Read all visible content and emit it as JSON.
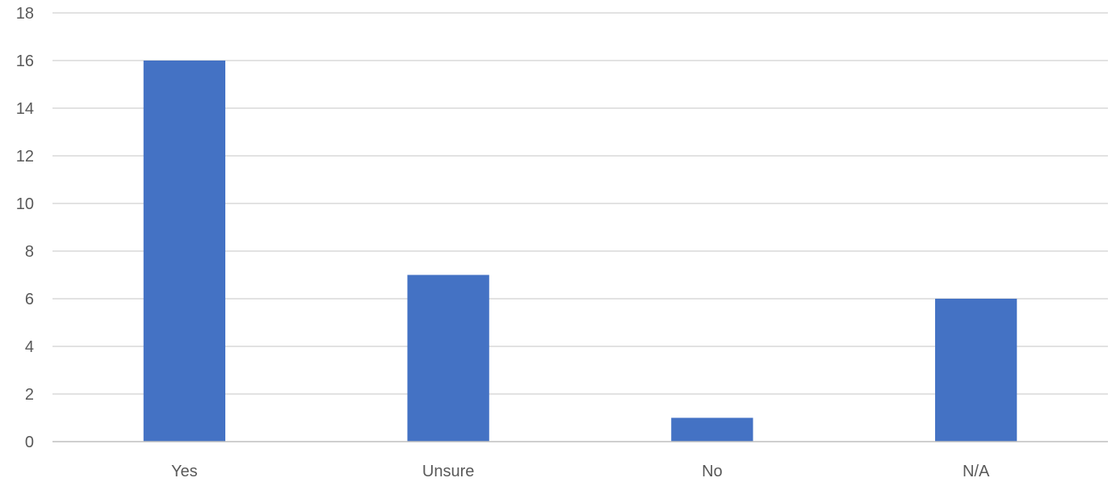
{
  "chart_data": {
    "type": "bar",
    "title": "",
    "xlabel": "",
    "ylabel": "",
    "categories": [
      "Yes",
      "Unsure",
      "No",
      "N/A"
    ],
    "values": [
      16,
      7,
      1,
      6
    ],
    "ylim": [
      0,
      18
    ],
    "y_ticks": [
      0,
      2,
      4,
      6,
      8,
      10,
      12,
      14,
      16,
      18
    ],
    "grid": true,
    "legend": "none",
    "bar_color": "#4472c4"
  }
}
